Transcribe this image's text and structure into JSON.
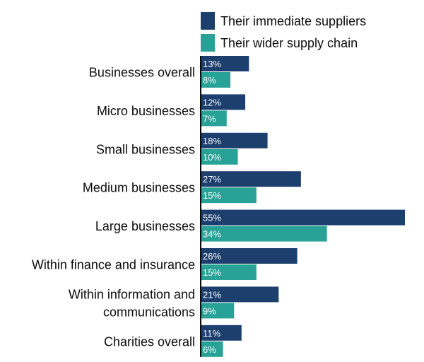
{
  "chart_data": {
    "type": "bar",
    "orientation": "horizontal",
    "categories": [
      [
        "Businesses overall"
      ],
      [
        "Micro businesses"
      ],
      [
        "Small businesses"
      ],
      [
        "Medium businesses"
      ],
      [
        "Large businesses"
      ],
      [
        "Within finance and insurance"
      ],
      [
        "Within information and",
        "communications"
      ],
      [
        "Charities overall"
      ]
    ],
    "series": [
      {
        "name": "Their immediate suppliers",
        "color": "#1d3f6e",
        "values": [
          13,
          12,
          18,
          27,
          55,
          26,
          21,
          11
        ]
      },
      {
        "name": "Their wider supply chain",
        "color": "#28a197",
        "values": [
          8,
          7,
          10,
          15,
          34,
          15,
          9,
          6
        ]
      }
    ],
    "value_suffix": "%",
    "xlim": [
      0,
      55
    ],
    "grid": false,
    "legend_position": "top"
  }
}
